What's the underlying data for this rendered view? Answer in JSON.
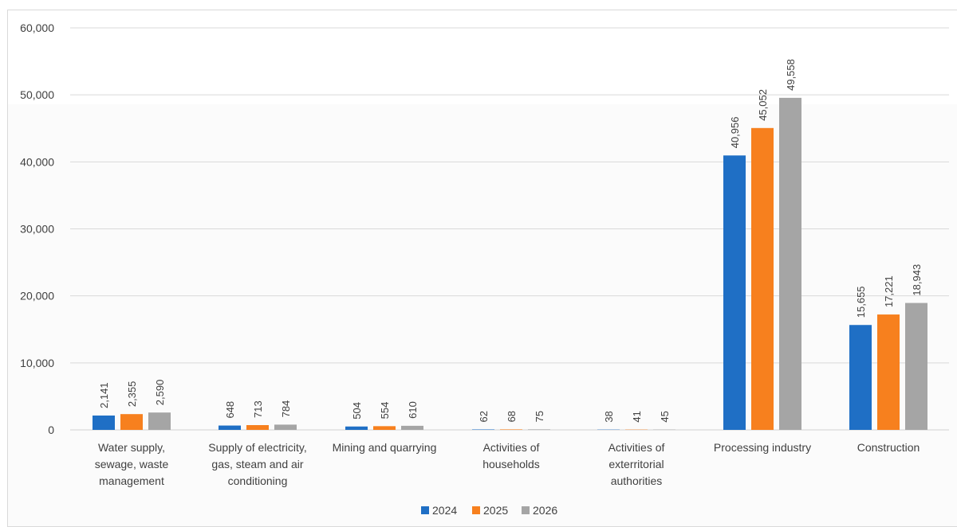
{
  "chart_data": {
    "type": "bar",
    "categories": [
      [
        "Water supply,",
        "sewage, waste",
        "management"
      ],
      [
        "Supply of electricity,",
        "gas, steam and air",
        "conditioning"
      ],
      [
        "Mining and quarrying"
      ],
      [
        "Activities of",
        "households"
      ],
      [
        "Activities of",
        "exterritorial",
        "authorities"
      ],
      [
        "Processing industry"
      ],
      [
        "Construction"
      ]
    ],
    "series": [
      {
        "name": "2024",
        "color": "#1f6fc5",
        "values": [
          2141,
          648,
          504,
          62,
          38,
          40956,
          15655
        ],
        "labels": [
          "2,141",
          "648",
          "504",
          "62",
          "38",
          "40,956",
          "15,655"
        ]
      },
      {
        "name": "2025",
        "color": "#f7801e",
        "values": [
          2355,
          713,
          554,
          68,
          41,
          45052,
          17221
        ],
        "labels": [
          "2,355",
          "713",
          "554",
          "68",
          "41",
          "45,052",
          "17,221"
        ]
      },
      {
        "name": "2026",
        "color": "#a5a5a5",
        "values": [
          2590,
          784,
          610,
          75,
          45,
          49558,
          18943
        ],
        "labels": [
          "2,590",
          "784",
          "610",
          "75",
          "45",
          "49,558",
          "18,943"
        ]
      }
    ],
    "ylim": [
      0,
      60000
    ],
    "yticks": [
      0,
      10000,
      20000,
      30000,
      40000,
      50000,
      60000
    ],
    "ytick_labels": [
      "0",
      "10,000",
      "20,000",
      "30,000",
      "40,000",
      "50,000",
      "60,000"
    ],
    "grid": true,
    "legend_position": "bottom"
  }
}
